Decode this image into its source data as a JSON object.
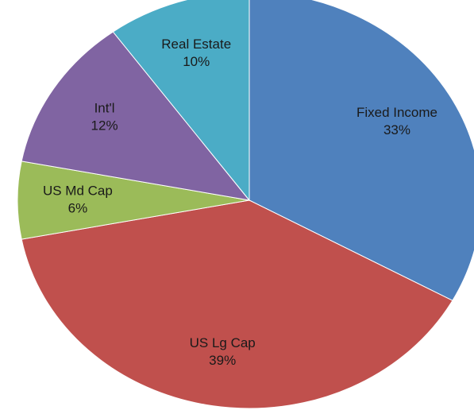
{
  "chart_data": {
    "type": "pie",
    "categories": [
      "Fixed Income",
      "US Lg Cap",
      "US Md Cap",
      "Int'l",
      "Real Estate"
    ],
    "values": [
      33,
      39,
      6,
      12,
      10
    ],
    "value_labels": [
      "33%",
      "39%",
      "6%",
      "12%",
      "10%"
    ],
    "colors": [
      "#4f81bd",
      "#c0504d",
      "#9bbb59",
      "#8064a2",
      "#4bacc6"
    ]
  }
}
